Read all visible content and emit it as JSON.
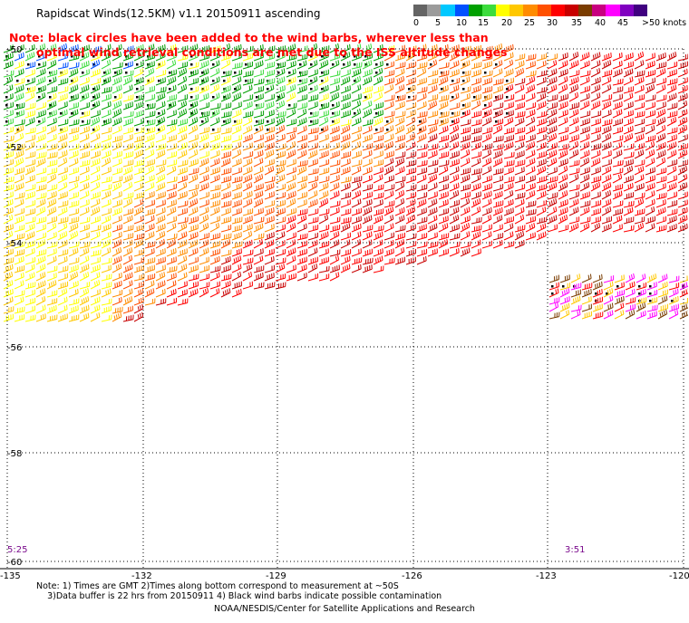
{
  "title": "Rapidscat Winds(12.5KM) v1.1 20150911 ascending",
  "note_line1": "Note: black circles have been added to the wind barbs, wherever less than",
  "note_line2": "optimal wind retrieval conditions are met due to the ISS altitude changes",
  "legend": {
    "labels": [
      "0",
      "5",
      "10",
      "15",
      "20",
      "25",
      "30",
      "35",
      "40",
      "45",
      ">50 knots"
    ],
    "colors": [
      "#646464",
      "#9b9b9b",
      "#00c8ff",
      "#0050ff",
      "#00a000",
      "#3cdc3c",
      "#ffff00",
      "#ffc800",
      "#ff8c00",
      "#ff5000",
      "#ff0000",
      "#c80000",
      "#7a3c00",
      "#c80080",
      "#ff00ff",
      "#8000c0",
      "#400080"
    ]
  },
  "axes": {
    "lon_labels": [
      "-135",
      "-132",
      "-129",
      "-126",
      "-123",
      "-120"
    ],
    "lat_labels": [
      "-50",
      "-52",
      "-54",
      "-56",
      "-58",
      "-60"
    ]
  },
  "pass_times": [
    "5:25",
    "3:51"
  ],
  "footnote_line1": "Note: 1) Times are GMT 2)Times along bottom correspond to measurement at ~50S",
  "footnote_line2": "3)Data buffer is 22 hrs from 20150911 4) Black wind barbs indicate possible contamination",
  "credit": "NOAA/NESDIS/Center for Satellite Applications and Research"
}
